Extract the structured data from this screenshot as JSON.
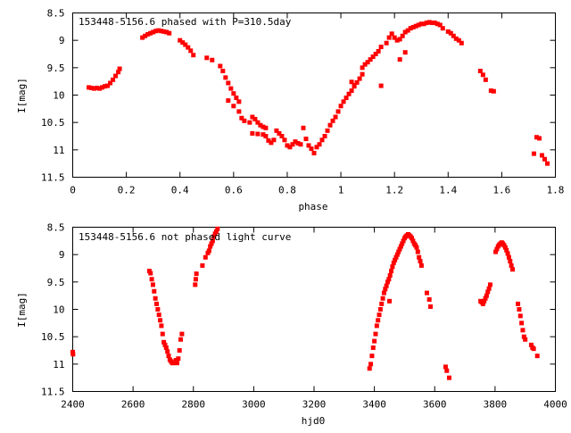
{
  "chart_data": [
    {
      "type": "scatter",
      "title": "153448-5156.6 phased with P=310.5day",
      "xlabel": "phase",
      "ylabel": "I[mag]",
      "xlim": [
        0,
        1.8
      ],
      "ylim": [
        11.5,
        8.5
      ],
      "y_inverted": true,
      "grid": false,
      "marker_color": "#ff0000",
      "x_ticks": [
        {
          "value": 0,
          "label": "0"
        },
        {
          "value": 0.2,
          "label": "0.2"
        },
        {
          "value": 0.4,
          "label": "0.4"
        },
        {
          "value": 0.6,
          "label": "0.6"
        },
        {
          "value": 0.8,
          "label": "0.8"
        },
        {
          "value": 1.0,
          "label": "1"
        },
        {
          "value": 1.2,
          "label": "1.2"
        },
        {
          "value": 1.4,
          "label": "1.4"
        },
        {
          "value": 1.6,
          "label": "1.6"
        },
        {
          "value": 1.8,
          "label": "1.8"
        }
      ],
      "y_ticks": [
        {
          "value": 8.5,
          "label": "8.5"
        },
        {
          "value": 9.0,
          "label": "9"
        },
        {
          "value": 9.5,
          "label": "9.5"
        },
        {
          "value": 10.0,
          "label": "10"
        },
        {
          "value": 10.5,
          "label": "10.5"
        },
        {
          "value": 11.0,
          "label": "11"
        },
        {
          "value": 11.5,
          "label": "11.5"
        }
      ],
      "points": [
        [
          0.06,
          9.86
        ],
        [
          0.07,
          9.87
        ],
        [
          0.08,
          9.88
        ],
        [
          0.09,
          9.87
        ],
        [
          0.1,
          9.88
        ],
        [
          0.11,
          9.86
        ],
        [
          0.12,
          9.84
        ],
        [
          0.13,
          9.83
        ],
        [
          0.14,
          9.78
        ],
        [
          0.15,
          9.72
        ],
        [
          0.16,
          9.65
        ],
        [
          0.17,
          9.58
        ],
        [
          0.175,
          9.52
        ],
        [
          0.26,
          8.95
        ],
        [
          0.27,
          8.92
        ],
        [
          0.28,
          8.89
        ],
        [
          0.29,
          8.87
        ],
        [
          0.3,
          8.85
        ],
        [
          0.31,
          8.83
        ],
        [
          0.32,
          8.82
        ],
        [
          0.33,
          8.83
        ],
        [
          0.34,
          8.84
        ],
        [
          0.35,
          8.85
        ],
        [
          0.36,
          8.87
        ],
        [
          0.4,
          9.0
        ],
        [
          0.41,
          9.04
        ],
        [
          0.42,
          9.08
        ],
        [
          0.43,
          9.13
        ],
        [
          0.44,
          9.19
        ],
        [
          0.45,
          9.27
        ],
        [
          0.5,
          9.32
        ],
        [
          0.52,
          9.36
        ],
        [
          0.55,
          9.47
        ],
        [
          0.56,
          9.56
        ],
        [
          0.57,
          9.68
        ],
        [
          0.58,
          9.78
        ],
        [
          0.59,
          9.88
        ],
        [
          0.6,
          9.97
        ],
        [
          0.61,
          10.05
        ],
        [
          0.62,
          10.12
        ],
        [
          0.58,
          10.1
        ],
        [
          0.6,
          10.2
        ],
        [
          0.62,
          10.3
        ],
        [
          0.63,
          10.42
        ],
        [
          0.64,
          10.47
        ],
        [
          0.66,
          10.5
        ],
        [
          0.67,
          10.4
        ],
        [
          0.68,
          10.44
        ],
        [
          0.69,
          10.5
        ],
        [
          0.7,
          10.55
        ],
        [
          0.71,
          10.58
        ],
        [
          0.72,
          10.6
        ],
        [
          0.67,
          10.7
        ],
        [
          0.69,
          10.71
        ],
        [
          0.71,
          10.72
        ],
        [
          0.72,
          10.75
        ],
        [
          0.73,
          10.83
        ],
        [
          0.74,
          10.87
        ],
        [
          0.75,
          10.82
        ],
        [
          0.76,
          10.65
        ],
        [
          0.77,
          10.7
        ],
        [
          0.78,
          10.75
        ],
        [
          0.79,
          10.82
        ],
        [
          0.8,
          10.92
        ],
        [
          0.81,
          10.95
        ],
        [
          0.82,
          10.9
        ],
        [
          0.83,
          10.85
        ],
        [
          0.84,
          10.88
        ],
        [
          0.85,
          10.9
        ],
        [
          0.86,
          10.6
        ],
        [
          0.87,
          10.8
        ],
        [
          0.88,
          10.92
        ],
        [
          0.89,
          10.98
        ],
        [
          0.9,
          11.06
        ],
        [
          0.91,
          10.95
        ],
        [
          0.92,
          10.9
        ],
        [
          0.93,
          10.82
        ],
        [
          0.94,
          10.75
        ],
        [
          0.95,
          10.65
        ],
        [
          0.96,
          10.55
        ],
        [
          0.97,
          10.47
        ],
        [
          0.98,
          10.4
        ],
        [
          0.99,
          10.3
        ],
        [
          1.0,
          10.2
        ],
        [
          1.01,
          10.12
        ],
        [
          1.02,
          10.05
        ],
        [
          1.03,
          9.98
        ],
        [
          1.04,
          9.92
        ],
        [
          1.05,
          9.84
        ],
        [
          1.06,
          9.77
        ],
        [
          1.07,
          9.7
        ],
        [
          1.08,
          9.62
        ],
        [
          1.08,
          9.5
        ],
        [
          1.09,
          9.44
        ],
        [
          1.1,
          9.4
        ],
        [
          1.11,
          9.35
        ],
        [
          1.12,
          9.3
        ],
        [
          1.13,
          9.25
        ],
        [
          1.14,
          9.2
        ],
        [
          1.15,
          9.12
        ],
        [
          1.04,
          9.76
        ],
        [
          1.05,
          9.82
        ],
        [
          1.15,
          9.83
        ],
        [
          1.17,
          9.05
        ],
        [
          1.18,
          8.95
        ],
        [
          1.19,
          8.88
        ],
        [
          1.2,
          8.95
        ],
        [
          1.21,
          9.0
        ],
        [
          1.22,
          8.98
        ],
        [
          1.23,
          8.92
        ],
        [
          1.24,
          8.85
        ],
        [
          1.25,
          8.82
        ],
        [
          1.26,
          8.78
        ],
        [
          1.27,
          8.76
        ],
        [
          1.28,
          8.74
        ],
        [
          1.24,
          9.22
        ],
        [
          1.22,
          9.35
        ],
        [
          1.29,
          8.72
        ],
        [
          1.3,
          8.7
        ],
        [
          1.31,
          8.7
        ],
        [
          1.32,
          8.68
        ],
        [
          1.33,
          8.67
        ],
        [
          1.34,
          8.68
        ],
        [
          1.35,
          8.68
        ],
        [
          1.36,
          8.7
        ],
        [
          1.37,
          8.72
        ],
        [
          1.38,
          8.78
        ],
        [
          1.4,
          8.84
        ],
        [
          1.41,
          8.87
        ],
        [
          1.42,
          8.92
        ],
        [
          1.43,
          8.97
        ],
        [
          1.44,
          9.0
        ],
        [
          1.45,
          9.05
        ],
        [
          1.52,
          9.56
        ],
        [
          1.53,
          9.63
        ],
        [
          1.54,
          9.72
        ],
        [
          1.56,
          9.92
        ],
        [
          1.57,
          9.93
        ],
        [
          1.73,
          10.77
        ],
        [
          1.74,
          10.79
        ],
        [
          1.72,
          11.07
        ],
        [
          1.75,
          11.1
        ],
        [
          1.76,
          11.17
        ],
        [
          1.77,
          11.25
        ]
      ]
    },
    {
      "type": "scatter",
      "title": "153448-5156.6 not phased light curve",
      "xlabel": "hjd0",
      "ylabel": "I[mag]",
      "xlim": [
        2400,
        4000
      ],
      "ylim": [
        11.5,
        8.5
      ],
      "y_inverted": true,
      "grid": false,
      "marker_color": "#ff0000",
      "x_ticks": [
        {
          "value": 2400,
          "label": "2400"
        },
        {
          "value": 2600,
          "label": "2600"
        },
        {
          "value": 2800,
          "label": "2800"
        },
        {
          "value": 3000,
          "label": "3000"
        },
        {
          "value": 3200,
          "label": "3200"
        },
        {
          "value": 3400,
          "label": "3400"
        },
        {
          "value": 3600,
          "label": "3600"
        },
        {
          "value": 3800,
          "label": "3800"
        },
        {
          "value": 4000,
          "label": "4000"
        }
      ],
      "y_ticks": [
        {
          "value": 8.5,
          "label": "8.5"
        },
        {
          "value": 9.0,
          "label": "9"
        },
        {
          "value": 9.5,
          "label": "9.5"
        },
        {
          "value": 10.0,
          "label": "10"
        },
        {
          "value": 10.5,
          "label": "10.5"
        },
        {
          "value": 11.0,
          "label": "11"
        },
        {
          "value": 11.5,
          "label": "11.5"
        }
      ],
      "points": [
        [
          2400,
          10.78
        ],
        [
          2401,
          10.82
        ],
        [
          2654,
          9.3
        ],
        [
          2658,
          9.34
        ],
        [
          2662,
          9.45
        ],
        [
          2666,
          9.55
        ],
        [
          2670,
          9.67
        ],
        [
          2674,
          9.8
        ],
        [
          2678,
          9.9
        ],
        [
          2682,
          10.0
        ],
        [
          2686,
          10.1
        ],
        [
          2690,
          10.2
        ],
        [
          2694,
          10.3
        ],
        [
          2698,
          10.45
        ],
        [
          2702,
          10.6
        ],
        [
          2706,
          10.65
        ],
        [
          2710,
          10.7
        ],
        [
          2714,
          10.77
        ],
        [
          2718,
          10.85
        ],
        [
          2722,
          10.92
        ],
        [
          2726,
          10.95
        ],
        [
          2730,
          10.98
        ],
        [
          2734,
          10.98
        ],
        [
          2738,
          10.97
        ],
        [
          2742,
          10.93
        ],
        [
          2746,
          10.98
        ],
        [
          2750,
          10.9
        ],
        [
          2754,
          10.75
        ],
        [
          2758,
          10.55
        ],
        [
          2762,
          10.45
        ],
        [
          2806,
          9.55
        ],
        [
          2808,
          9.45
        ],
        [
          2810,
          9.35
        ],
        [
          2830,
          9.2
        ],
        [
          2840,
          9.05
        ],
        [
          2848,
          8.97
        ],
        [
          2852,
          8.93
        ],
        [
          2856,
          8.85
        ],
        [
          2860,
          8.8
        ],
        [
          2864,
          8.75
        ],
        [
          2868,
          8.67
        ],
        [
          2872,
          8.62
        ],
        [
          2876,
          8.58
        ],
        [
          2880,
          8.53
        ],
        [
          3384,
          11.08
        ],
        [
          3388,
          11.0
        ],
        [
          3392,
          10.85
        ],
        [
          3396,
          10.7
        ],
        [
          3400,
          10.58
        ],
        [
          3404,
          10.45
        ],
        [
          3408,
          10.3
        ],
        [
          3412,
          10.2
        ],
        [
          3416,
          10.1
        ],
        [
          3420,
          10.0
        ],
        [
          3424,
          9.9
        ],
        [
          3428,
          9.8
        ],
        [
          3432,
          9.7
        ],
        [
          3436,
          9.63
        ],
        [
          3440,
          9.57
        ],
        [
          3444,
          9.5
        ],
        [
          3448,
          9.45
        ],
        [
          3452,
          9.38
        ],
        [
          3456,
          9.3
        ],
        [
          3460,
          9.22
        ],
        [
          3464,
          9.15
        ],
        [
          3468,
          9.1
        ],
        [
          3472,
          9.05
        ],
        [
          3476,
          9.0
        ],
        [
          3480,
          8.95
        ],
        [
          3484,
          8.9
        ],
        [
          3488,
          8.85
        ],
        [
          3492,
          8.8
        ],
        [
          3496,
          8.75
        ],
        [
          3500,
          8.7
        ],
        [
          3504,
          8.67
        ],
        [
          3508,
          8.65
        ],
        [
          3512,
          8.63
        ],
        [
          3516,
          8.65
        ],
        [
          3520,
          8.67
        ],
        [
          3524,
          8.7
        ],
        [
          3528,
          8.75
        ],
        [
          3532,
          8.8
        ],
        [
          3536,
          8.83
        ],
        [
          3540,
          8.87
        ],
        [
          3544,
          8.95
        ],
        [
          3548,
          9.05
        ],
        [
          3552,
          9.12
        ],
        [
          3556,
          9.2
        ],
        [
          3450,
          9.85
        ],
        [
          3574,
          9.7
        ],
        [
          3582,
          9.82
        ],
        [
          3586,
          9.95
        ],
        [
          3636,
          11.05
        ],
        [
          3640,
          11.12
        ],
        [
          3648,
          11.25
        ],
        [
          3752,
          9.85
        ],
        [
          3756,
          9.87
        ],
        [
          3760,
          9.9
        ],
        [
          3764,
          9.85
        ],
        [
          3768,
          9.8
        ],
        [
          3772,
          9.75
        ],
        [
          3776,
          9.68
        ],
        [
          3780,
          9.62
        ],
        [
          3784,
          9.55
        ],
        [
          3802,
          8.95
        ],
        [
          3806,
          8.9
        ],
        [
          3810,
          8.85
        ],
        [
          3814,
          8.82
        ],
        [
          3818,
          8.8
        ],
        [
          3822,
          8.78
        ],
        [
          3826,
          8.8
        ],
        [
          3830,
          8.83
        ],
        [
          3834,
          8.87
        ],
        [
          3838,
          8.92
        ],
        [
          3842,
          8.98
        ],
        [
          3846,
          9.05
        ],
        [
          3850,
          9.12
        ],
        [
          3854,
          9.2
        ],
        [
          3858,
          9.27
        ],
        [
          3876,
          9.9
        ],
        [
          3880,
          10.0
        ],
        [
          3884,
          10.12
        ],
        [
          3888,
          10.25
        ],
        [
          3892,
          10.38
        ],
        [
          3896,
          10.5
        ],
        [
          3900,
          10.55
        ],
        [
          3920,
          10.65
        ],
        [
          3924,
          10.7
        ],
        [
          3928,
          10.72
        ],
        [
          3940,
          10.85
        ]
      ]
    }
  ]
}
